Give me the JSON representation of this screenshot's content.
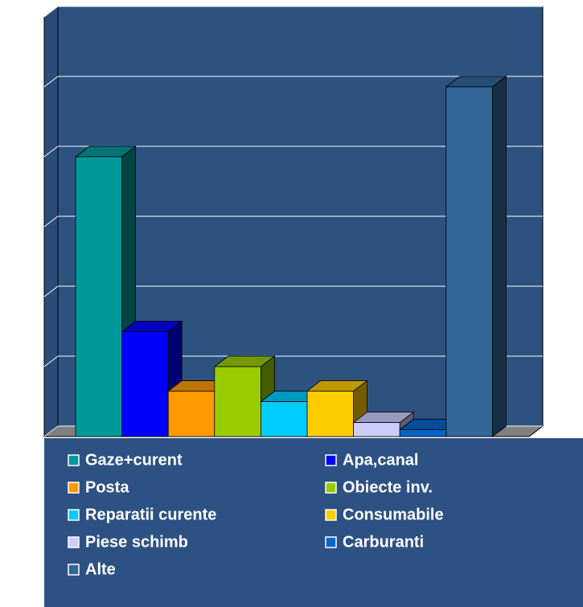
{
  "chart_data": {
    "type": "bar3d",
    "categories": [
      "Gaze+curent",
      "Apa,canal",
      "Posta",
      "Obiecte inv.",
      "Reparatii curente",
      "Consumabile",
      "Piese schimb",
      "Carburanti",
      "Alte"
    ],
    "values": [
      4,
      1.5,
      0.65,
      1,
      0.5,
      0.65,
      0.2,
      0.1,
      5
    ],
    "colors": [
      "#009999",
      "#0000ff",
      "#ff9900",
      "#99cc00",
      "#00ccff",
      "#ffcc00",
      "#ccccff",
      "#0066cc",
      "#336699"
    ],
    "ylim": [
      0,
      6
    ],
    "yticks": [
      0,
      1,
      2,
      3,
      4,
      5,
      6
    ],
    "grid": true,
    "legend": "bottom"
  }
}
